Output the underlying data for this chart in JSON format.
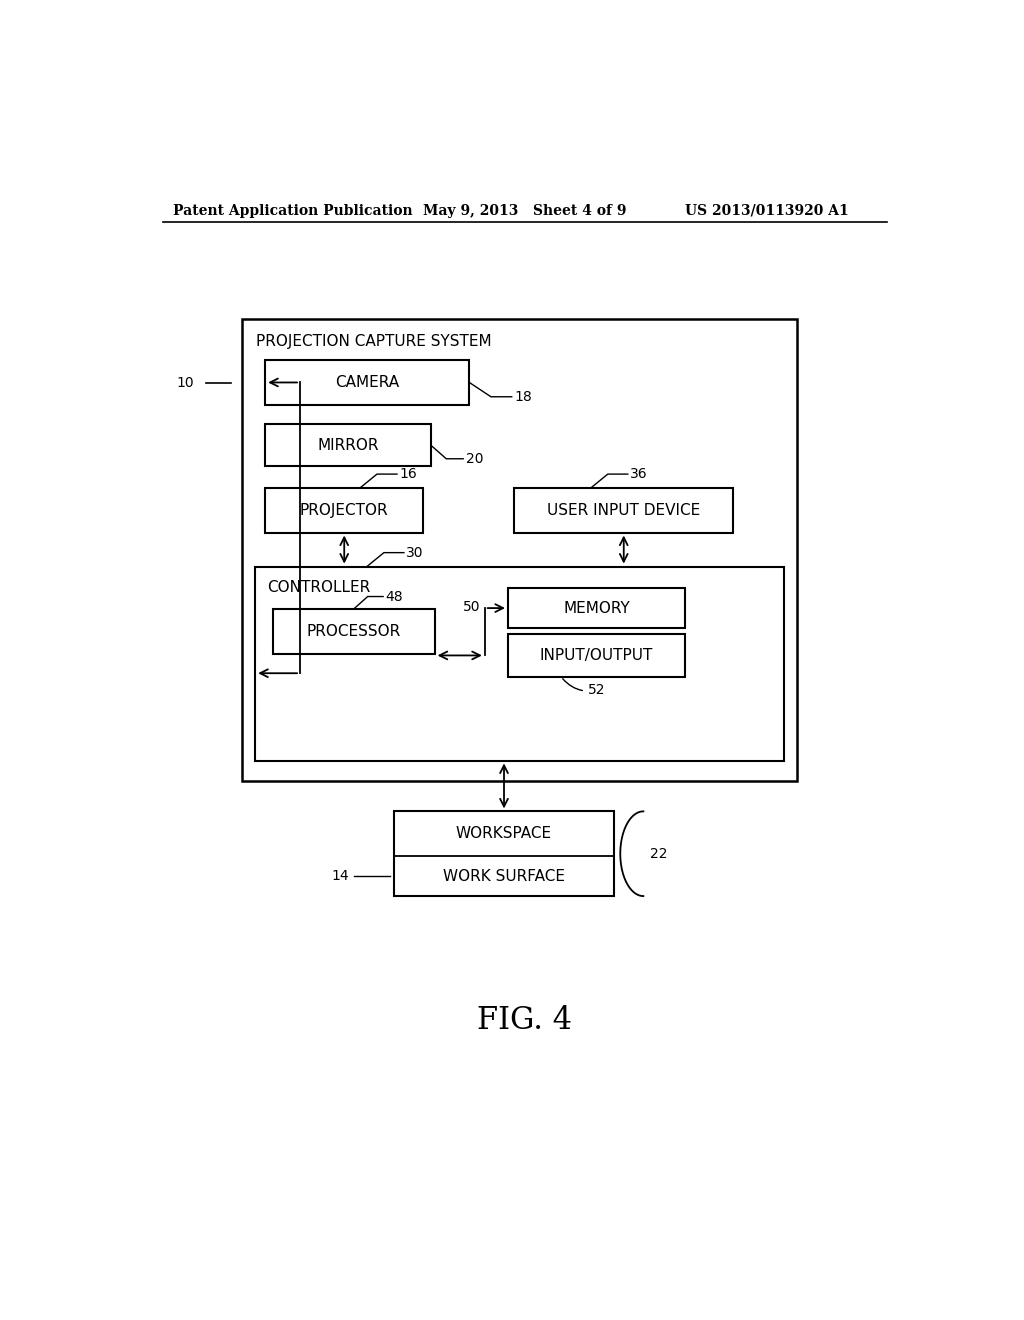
{
  "bg_color": "#ffffff",
  "header_left": "Patent Application Publication",
  "header_mid": "May 9, 2013   Sheet 4 of 9",
  "header_right": "US 2013/0113920 A1",
  "fig_label": "FIG. 4",
  "outer_box_label": "PROJECTION CAPTURE SYSTEM",
  "camera_label": "CAMERA",
  "mirror_label": "MIRROR",
  "projector_label": "PROJECTOR",
  "user_input_label": "USER INPUT DEVICE",
  "controller_label": "CONTROLLER",
  "processor_label": "PROCESSOR",
  "memory_label": "MEMORY",
  "io_label": "INPUT/OUTPUT",
  "workspace_label": "WORKSPACE",
  "work_surface_label": "WORK SURFACE",
  "num_10": "10",
  "num_14": "14",
  "num_16": "16",
  "num_18": "18",
  "num_20": "20",
  "num_22": "22",
  "num_30": "30",
  "num_36": "36",
  "num_48": "48",
  "num_50": "50",
  "num_52": "52"
}
